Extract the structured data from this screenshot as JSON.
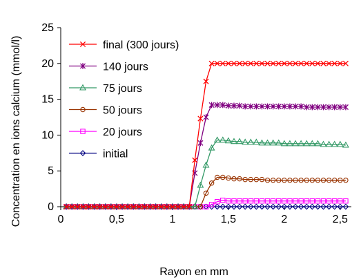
{
  "chart_data": {
    "type": "line",
    "xlabel": "Rayon en mm",
    "ylabel": "Concentration en ions calcium (mmol/l)",
    "xlim": [
      0,
      2.6
    ],
    "ylim": [
      0,
      25
    ],
    "xticks": [
      0,
      0.5,
      1,
      1.5,
      2,
      2.5
    ],
    "xtick_labels": [
      "0",
      "0,5",
      "1",
      "1,5",
      "2",
      "2,5"
    ],
    "yticks": [
      0,
      5,
      10,
      15,
      20,
      25
    ],
    "ytick_labels": [
      "0",
      "5",
      "10",
      "15",
      "20",
      "25"
    ],
    "grid": false,
    "legend_position": "top-left",
    "x": [
      0.05,
      0.1,
      0.15,
      0.2,
      0.25,
      0.3,
      0.35,
      0.4,
      0.45,
      0.5,
      0.55,
      0.6,
      0.65,
      0.7,
      0.75,
      0.8,
      0.85,
      0.9,
      0.95,
      1.0,
      1.05,
      1.1,
      1.15,
      1.2,
      1.25,
      1.3,
      1.35,
      1.4,
      1.45,
      1.5,
      1.55,
      1.6,
      1.65,
      1.7,
      1.75,
      1.8,
      1.85,
      1.9,
      1.95,
      2.0,
      2.05,
      2.1,
      2.15,
      2.2,
      2.25,
      2.3,
      2.35,
      2.4,
      2.45,
      2.5,
      2.55
    ],
    "series": [
      {
        "name": "final (300 jours)",
        "color": "#ff0000",
        "marker": "x",
        "values": [
          0,
          0,
          0,
          0,
          0,
          0,
          0,
          0,
          0,
          0,
          0,
          0,
          0,
          0,
          0,
          0,
          0,
          0,
          0,
          0,
          0,
          0,
          0,
          6.5,
          12.3,
          17.5,
          20,
          20,
          20,
          20,
          20,
          20,
          20,
          20,
          20,
          20,
          20,
          20,
          20,
          20,
          20,
          20,
          20,
          20,
          20,
          20,
          20,
          20,
          20,
          20,
          20
        ]
      },
      {
        "name": "140 jours",
        "color": "#800080",
        "marker": "star",
        "values": [
          0,
          0,
          0,
          0,
          0,
          0,
          0,
          0,
          0,
          0,
          0,
          0,
          0,
          0,
          0,
          0,
          0,
          0,
          0,
          0,
          0,
          0,
          0,
          4.7,
          8.9,
          12.5,
          14.2,
          14.2,
          14.2,
          14.1,
          14.1,
          14.1,
          14.0,
          14.0,
          14.0,
          14.0,
          14.0,
          14.0,
          14.0,
          14.0,
          14.0,
          14.0,
          14.0,
          13.9,
          13.9,
          13.9,
          13.9,
          13.9,
          13.9,
          13.9,
          13.9
        ]
      },
      {
        "name": "75 jours",
        "color": "#339966",
        "marker": "triangle",
        "values": [
          0,
          0,
          0,
          0,
          0,
          0,
          0,
          0,
          0,
          0,
          0,
          0,
          0,
          0,
          0,
          0,
          0,
          0,
          0,
          0,
          0,
          0,
          0,
          0,
          3.0,
          5.8,
          8.2,
          9.3,
          9.3,
          9.2,
          9.1,
          9.1,
          9.0,
          9.0,
          9.0,
          8.9,
          8.9,
          8.9,
          8.9,
          8.8,
          8.8,
          8.8,
          8.8,
          8.8,
          8.8,
          8.8,
          8.7,
          8.7,
          8.7,
          8.7,
          8.6
        ]
      },
      {
        "name": "50 jours",
        "color": "#993300",
        "marker": "circle",
        "values": [
          0,
          0,
          0,
          0,
          0,
          0,
          0,
          0,
          0,
          0,
          0,
          0,
          0,
          0,
          0,
          0,
          0,
          0,
          0,
          0,
          0,
          0,
          0,
          0,
          0,
          1.9,
          3.3,
          4.1,
          4.1,
          4.0,
          3.9,
          3.9,
          3.8,
          3.8,
          3.8,
          3.8,
          3.7,
          3.7,
          3.7,
          3.7,
          3.7,
          3.7,
          3.7,
          3.7,
          3.7,
          3.7,
          3.7,
          3.7,
          3.7,
          3.7,
          3.7
        ]
      },
      {
        "name": "20 jours",
        "color": "#ff00ff",
        "marker": "square",
        "values": [
          0,
          0,
          0,
          0,
          0,
          0,
          0,
          0,
          0,
          0,
          0,
          0,
          0,
          0,
          0,
          0,
          0,
          0,
          0,
          0,
          0,
          0,
          0,
          0,
          0,
          0,
          0.3,
          0.7,
          0.9,
          0.8,
          0.8,
          0.8,
          0.8,
          0.8,
          0.8,
          0.8,
          0.8,
          0.8,
          0.8,
          0.8,
          0.8,
          0.8,
          0.8,
          0.8,
          0.8,
          0.8,
          0.8,
          0.8,
          0.8,
          0.8,
          0.8
        ]
      },
      {
        "name": "initial",
        "color": "#000080",
        "marker": "diamond",
        "values": [
          0,
          0,
          0,
          0,
          0,
          0,
          0,
          0,
          0,
          0,
          0,
          0,
          0,
          0,
          0,
          0,
          0,
          0,
          0,
          0,
          0,
          0,
          0,
          0,
          0,
          0,
          0,
          0,
          0,
          0,
          0,
          0,
          0,
          0,
          0,
          0,
          0,
          0,
          0,
          0,
          0,
          0,
          0,
          0,
          0,
          0,
          0,
          0,
          0,
          0,
          0
        ]
      }
    ]
  }
}
